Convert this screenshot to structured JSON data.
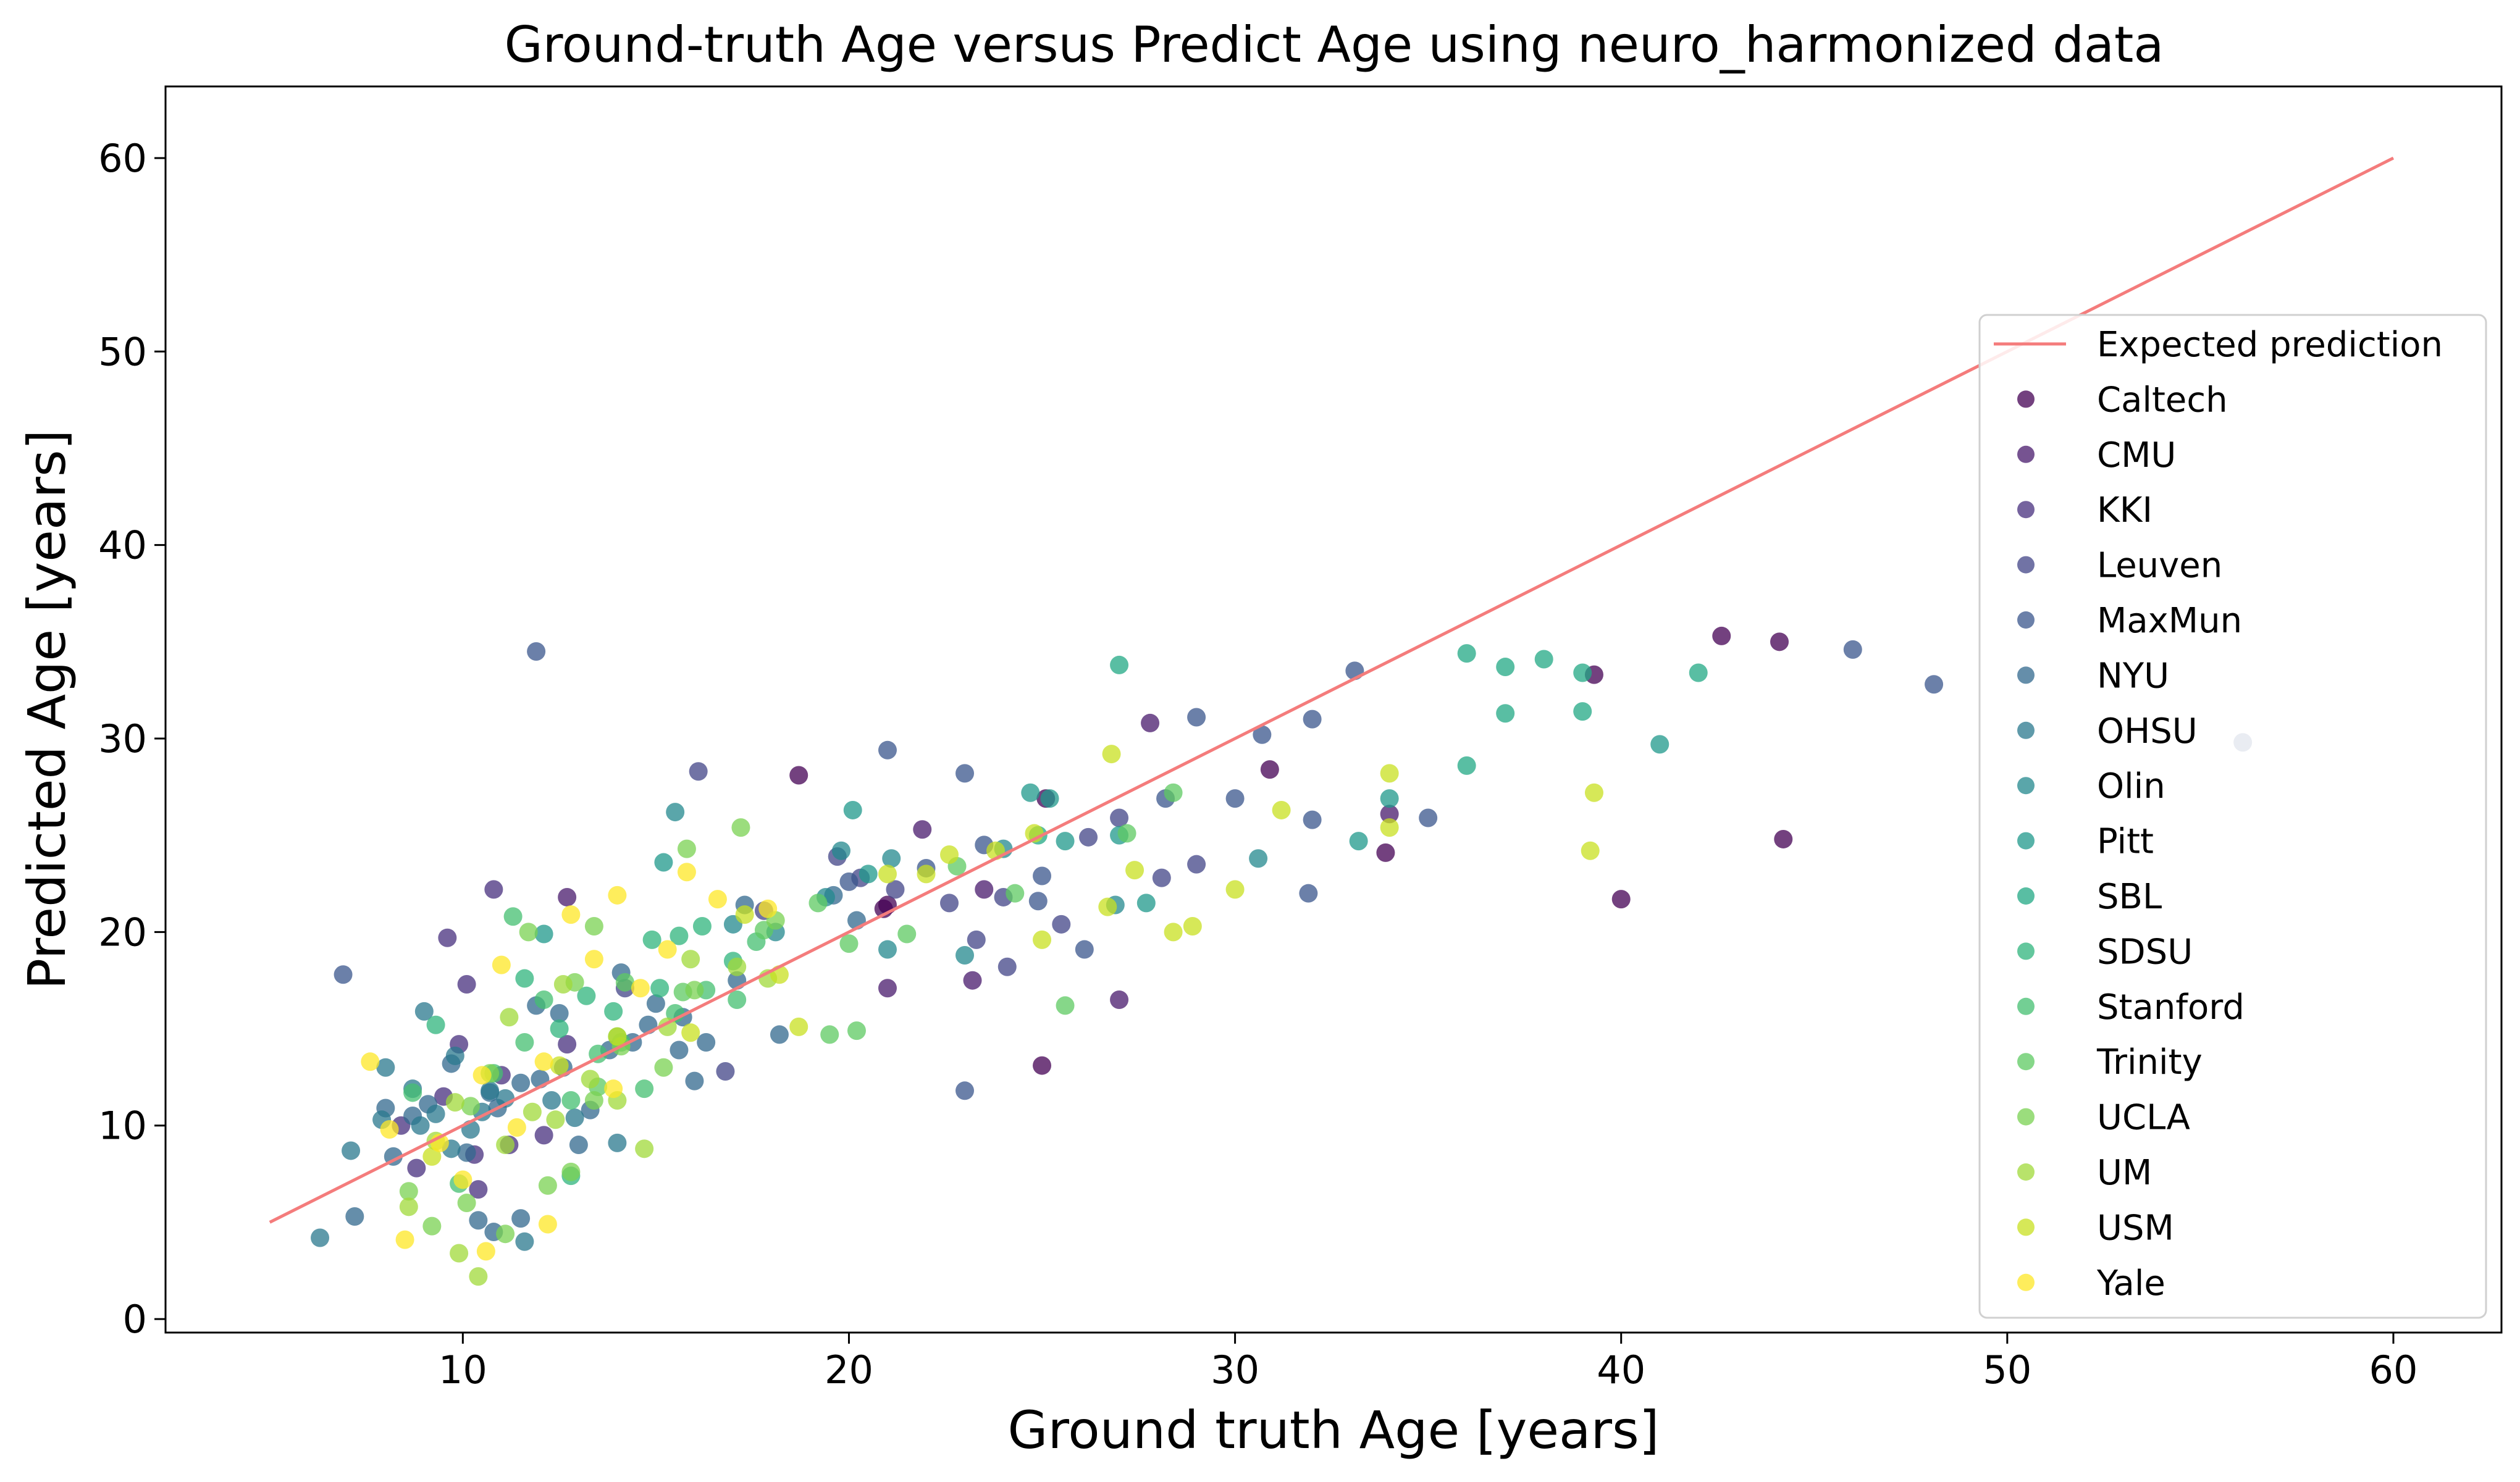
{
  "chart_data": {
    "type": "scatter",
    "title": "Ground-truth Age versus Predict Age using neuro_harmonized data",
    "xlabel": "Ground truth Age [years]",
    "ylabel": "Predicted Age [years]",
    "xlim": [
      2.3,
      62.8
    ],
    "ylim": [
      -0.7,
      63.7
    ],
    "xticks": [
      10,
      20,
      30,
      40,
      50,
      60
    ],
    "yticks": [
      0,
      10,
      20,
      30,
      40,
      50,
      60
    ],
    "grid": false,
    "legend_position": "center-right",
    "reference_line": {
      "name": "Expected prediction",
      "color": "#f47c7c",
      "points": [
        [
          5,
          5
        ],
        [
          60,
          60
        ]
      ]
    },
    "series": [
      {
        "name": "Caltech",
        "color": "#440154",
        "points": [
          [
            18.7,
            28.1
          ],
          [
            21.0,
            21.4
          ],
          [
            25.0,
            13.1
          ],
          [
            30.9,
            28.4
          ],
          [
            33.9,
            24.1
          ],
          [
            39.3,
            33.3
          ],
          [
            40.0,
            21.7
          ],
          [
            42.6,
            35.3
          ],
          [
            44.1,
            35.0
          ],
          [
            44.2,
            24.8
          ],
          [
            20.9,
            21.2
          ],
          [
            25.1,
            26.9
          ]
        ]
      },
      {
        "name": "CMU",
        "color": "#481a6c",
        "points": [
          [
            21.9,
            25.3
          ],
          [
            23.2,
            17.5
          ],
          [
            27.0,
            16.5
          ],
          [
            27.8,
            30.8
          ],
          [
            34.0,
            26.1
          ],
          [
            21.0,
            17.1
          ],
          [
            12.7,
            21.8
          ],
          [
            23.5,
            22.2
          ]
        ]
      },
      {
        "name": "KKI",
        "color": "#472f7d",
        "points": [
          [
            9.6,
            19.7
          ],
          [
            10.8,
            22.2
          ],
          [
            8.8,
            7.8
          ],
          [
            9.9,
            14.2
          ],
          [
            11.2,
            9.0
          ],
          [
            10.1,
            17.3
          ],
          [
            9.5,
            11.5
          ],
          [
            11.0,
            12.6
          ],
          [
            12.1,
            9.5
          ],
          [
            10.4,
            6.7
          ],
          [
            12.7,
            14.2
          ],
          [
            8.4,
            10.0
          ],
          [
            10.3,
            8.5
          ]
        ]
      },
      {
        "name": "Leuven",
        "color": "#414487",
        "points": [
          [
            16.1,
            28.3
          ],
          [
            19.7,
            23.9
          ],
          [
            22.6,
            21.5
          ],
          [
            24.1,
            18.2
          ],
          [
            24.0,
            21.8
          ],
          [
            25.5,
            20.4
          ],
          [
            27.0,
            25.9
          ],
          [
            28.1,
            22.8
          ],
          [
            29.0,
            23.5
          ],
          [
            16.8,
            12.8
          ],
          [
            21.2,
            22.2
          ],
          [
            23.3,
            19.6
          ],
          [
            26.2,
            24.9
          ],
          [
            17.8,
            21.1
          ],
          [
            20.3,
            22.8
          ],
          [
            14.2,
            17.1
          ]
        ]
      },
      {
        "name": "MaxMun",
        "color": "#39568c",
        "points": [
          [
            6.9,
            17.8
          ],
          [
            11.9,
            34.5
          ],
          [
            23.0,
            28.2
          ],
          [
            29.0,
            31.1
          ],
          [
            30.0,
            26.9
          ],
          [
            33.1,
            33.5
          ],
          [
            35.0,
            25.9
          ],
          [
            46.0,
            34.6
          ],
          [
            48.1,
            32.8
          ],
          [
            56.1,
            29.8
          ],
          [
            23.0,
            11.8
          ],
          [
            26.1,
            19.1
          ],
          [
            28.2,
            26.9
          ],
          [
            31.9,
            22.0
          ],
          [
            25.0,
            22.9
          ],
          [
            21.0,
            29.4
          ],
          [
            22.0,
            23.3
          ],
          [
            30.7,
            30.2
          ],
          [
            32.0,
            31.0
          ],
          [
            32.0,
            25.8
          ],
          [
            23.5,
            24.5
          ],
          [
            24.9,
            21.6
          ],
          [
            20.0,
            22.6
          ]
        ]
      },
      {
        "name": "NYU",
        "color": "#31688e",
        "points": [
          [
            7.2,
            5.3
          ],
          [
            8.0,
            10.9
          ],
          [
            8.7,
            10.5
          ],
          [
            9.1,
            11.1
          ],
          [
            10.1,
            8.6
          ],
          [
            10.4,
            5.1
          ],
          [
            10.8,
            4.5
          ],
          [
            11.5,
            5.2
          ],
          [
            11.9,
            16.2
          ],
          [
            12.6,
            13.0
          ],
          [
            13.3,
            10.8
          ],
          [
            13.8,
            13.9
          ],
          [
            14.4,
            14.3
          ],
          [
            15.0,
            16.3
          ],
          [
            15.7,
            15.6
          ],
          [
            16.3,
            14.3
          ],
          [
            17.1,
            17.5
          ],
          [
            18.2,
            14.7
          ],
          [
            19.6,
            21.9
          ],
          [
            20.2,
            20.6
          ],
          [
            12.0,
            12.4
          ],
          [
            9.7,
            13.2
          ],
          [
            8.2,
            8.4
          ],
          [
            11.5,
            12.2
          ],
          [
            13.0,
            9.0
          ],
          [
            14.1,
            17.9
          ],
          [
            16.0,
            12.3
          ],
          [
            17.3,
            21.4
          ],
          [
            12.5,
            15.8
          ],
          [
            14.8,
            15.2
          ],
          [
            10.9,
            10.9
          ],
          [
            15.6,
            13.9
          ],
          [
            10.7,
            11.7
          ]
        ]
      },
      {
        "name": "OHSU",
        "color": "#2a788e",
        "points": [
          [
            6.3,
            4.2
          ],
          [
            7.1,
            8.7
          ],
          [
            8.0,
            13.0
          ],
          [
            8.9,
            10.0
          ],
          [
            9.0,
            15.9
          ],
          [
            9.7,
            8.8
          ],
          [
            10.2,
            9.8
          ],
          [
            10.7,
            11.8
          ],
          [
            11.6,
            4.0
          ],
          [
            12.3,
            11.3
          ],
          [
            12.9,
            10.4
          ],
          [
            14.0,
            9.1
          ],
          [
            7.9,
            10.3
          ],
          [
            9.3,
            10.6
          ],
          [
            9.8,
            13.6
          ],
          [
            11.1,
            11.4
          ],
          [
            8.7,
            11.9
          ],
          [
            10.5,
            10.7
          ]
        ]
      },
      {
        "name": "Olin",
        "color": "#23888e",
        "points": [
          [
            15.5,
            26.2
          ],
          [
            18.1,
            20.0
          ],
          [
            19.8,
            24.2
          ],
          [
            21.0,
            19.1
          ],
          [
            23.0,
            18.8
          ],
          [
            26.9,
            21.4
          ],
          [
            30.6,
            23.8
          ],
          [
            21.1,
            23.8
          ],
          [
            24.0,
            24.3
          ],
          [
            17.0,
            20.4
          ],
          [
            19.4,
            21.8
          ]
        ]
      },
      {
        "name": "Pitt",
        "color": "#1f988b",
        "points": [
          [
            12.1,
            19.9
          ],
          [
            15.2,
            23.6
          ],
          [
            20.1,
            26.3
          ],
          [
            25.2,
            26.9
          ],
          [
            27.0,
            25.0
          ],
          [
            27.7,
            21.5
          ],
          [
            33.2,
            24.7
          ],
          [
            34.0,
            26.9
          ],
          [
            41.0,
            29.7
          ],
          [
            20.5,
            23.0
          ],
          [
            25.6,
            24.7
          ],
          [
            24.7,
            27.2
          ]
        ]
      },
      {
        "name": "SBL",
        "color": "#22a884",
        "points": [
          [
            27.0,
            33.8
          ],
          [
            36.0,
            34.4
          ],
          [
            37.0,
            33.7
          ],
          [
            38.0,
            34.1
          ],
          [
            39.0,
            33.4
          ],
          [
            42.0,
            33.4
          ],
          [
            37.0,
            31.3
          ],
          [
            39.0,
            31.4
          ],
          [
            36.0,
            28.6
          ],
          [
            24.9,
            25.0
          ]
        ]
      },
      {
        "name": "SDSU",
        "color": "#2fb47c",
        "points": [
          [
            12.5,
            15.0
          ],
          [
            13.2,
            16.7
          ],
          [
            14.0,
            14.6
          ],
          [
            14.9,
            19.6
          ],
          [
            15.6,
            19.8
          ],
          [
            16.2,
            20.3
          ],
          [
            17.0,
            18.5
          ],
          [
            12.8,
            7.4
          ],
          [
            9.3,
            15.2
          ],
          [
            11.6,
            17.6
          ],
          [
            13.9,
            15.9
          ],
          [
            15.1,
            17.1
          ]
        ]
      },
      {
        "name": "Stanford",
        "color": "#44bf70",
        "points": [
          [
            9.9,
            7.0
          ],
          [
            10.8,
            12.7
          ],
          [
            11.3,
            20.8
          ],
          [
            12.1,
            16.5
          ],
          [
            12.8,
            11.3
          ],
          [
            13.5,
            13.7
          ],
          [
            14.1,
            14.3
          ],
          [
            14.7,
            11.9
          ],
          [
            15.5,
            15.8
          ],
          [
            16.3,
            17.0
          ],
          [
            17.1,
            16.5
          ],
          [
            17.6,
            19.5
          ],
          [
            8.7,
            11.7
          ],
          [
            11.6,
            14.3
          ]
        ]
      },
      {
        "name": "Trinity",
        "color": "#5ec962",
        "points": [
          [
            14.2,
            17.4
          ],
          [
            15.7,
            16.9
          ],
          [
            17.8,
            20.1
          ],
          [
            19.2,
            21.5
          ],
          [
            20.0,
            19.4
          ],
          [
            21.5,
            19.9
          ],
          [
            25.6,
            16.2
          ],
          [
            27.2,
            25.1
          ],
          [
            28.4,
            27.2
          ],
          [
            22.8,
            23.4
          ],
          [
            24.3,
            22.0
          ],
          [
            20.2,
            14.9
          ],
          [
            19.5,
            14.7
          ],
          [
            13.5,
            12.0
          ]
        ]
      },
      {
        "name": "UCLA",
        "color": "#7ad151",
        "points": [
          [
            9.2,
            4.8
          ],
          [
            10.1,
            6.0
          ],
          [
            11.1,
            4.4
          ],
          [
            12.2,
            6.9
          ],
          [
            12.8,
            7.6
          ],
          [
            13.4,
            11.3
          ],
          [
            10.7,
            12.7
          ],
          [
            11.7,
            20.0
          ],
          [
            12.9,
            17.4
          ],
          [
            14.1,
            14.1
          ],
          [
            15.2,
            13.0
          ],
          [
            16.0,
            17.0
          ],
          [
            17.2,
            25.4
          ],
          [
            18.1,
            20.6
          ],
          [
            13.4,
            20.3
          ],
          [
            15.8,
            24.3
          ],
          [
            8.6,
            6.6
          ],
          [
            10.2,
            11.0
          ]
        ]
      },
      {
        "name": "UM",
        "color": "#a0da39",
        "points": [
          [
            8.6,
            5.8
          ],
          [
            9.3,
            9.2
          ],
          [
            9.9,
            3.4
          ],
          [
            10.4,
            2.2
          ],
          [
            11.1,
            9.0
          ],
          [
            11.8,
            10.7
          ],
          [
            12.6,
            17.3
          ],
          [
            13.3,
            12.4
          ],
          [
            14.0,
            11.3
          ],
          [
            14.7,
            8.8
          ],
          [
            15.3,
            15.1
          ],
          [
            15.9,
            18.6
          ],
          [
            17.1,
            18.2
          ],
          [
            17.9,
            17.6
          ],
          [
            11.2,
            15.6
          ],
          [
            12.4,
            10.3
          ],
          [
            9.8,
            11.2
          ]
        ]
      },
      {
        "name": "USM",
        "color": "#c8e020",
        "points": [
          [
            9.2,
            8.4
          ],
          [
            12.5,
            13.1
          ],
          [
            14.0,
            14.6
          ],
          [
            15.9,
            14.8
          ],
          [
            17.3,
            20.9
          ],
          [
            18.2,
            17.8
          ],
          [
            22.0,
            23.0
          ],
          [
            22.6,
            24.0
          ],
          [
            24.8,
            25.1
          ],
          [
            26.7,
            21.3
          ],
          [
            26.8,
            29.2
          ],
          [
            28.4,
            20.0
          ],
          [
            28.9,
            20.3
          ],
          [
            30.0,
            22.2
          ],
          [
            31.2,
            26.3
          ],
          [
            34.0,
            28.2
          ],
          [
            34.0,
            25.4
          ],
          [
            39.3,
            27.2
          ],
          [
            39.2,
            24.2
          ],
          [
            25.0,
            19.6
          ],
          [
            21.0,
            23.0
          ],
          [
            23.8,
            24.2
          ],
          [
            27.4,
            23.2
          ],
          [
            18.7,
            15.1
          ]
        ]
      },
      {
        "name": "Yale",
        "color": "#fde725",
        "points": [
          [
            7.6,
            13.3
          ],
          [
            8.5,
            4.1
          ],
          [
            9.4,
            9.1
          ],
          [
            10.0,
            7.2
          ],
          [
            10.6,
            3.5
          ],
          [
            11.0,
            18.3
          ],
          [
            12.2,
            4.9
          ],
          [
            12.8,
            20.9
          ],
          [
            13.4,
            18.6
          ],
          [
            14.0,
            21.9
          ],
          [
            14.6,
            17.1
          ],
          [
            15.3,
            19.1
          ],
          [
            15.8,
            23.1
          ],
          [
            16.6,
            21.7
          ],
          [
            17.9,
            21.2
          ],
          [
            10.5,
            12.6
          ],
          [
            11.4,
            9.9
          ],
          [
            12.1,
            13.3
          ],
          [
            13.9,
            11.9
          ],
          [
            8.1,
            9.8
          ]
        ]
      }
    ]
  }
}
